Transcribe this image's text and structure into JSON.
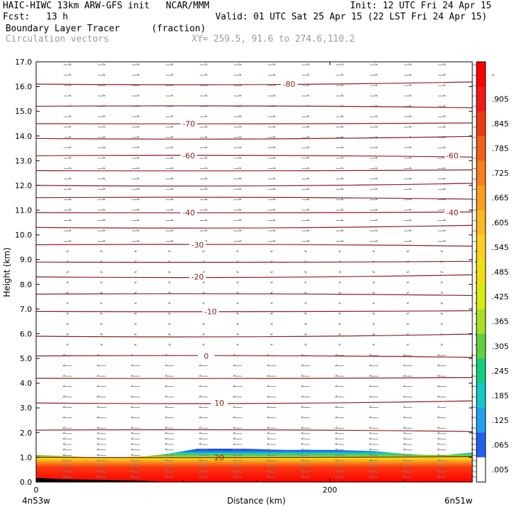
{
  "header": {
    "line1_left": "HAIC-HIWC 13km ARW-GFS init   NCAR/MMM",
    "line1_right": "Init: 12 UTC Fri 24 Apr 15",
    "line2_left": "Fcst:   13 h",
    "line2_right": "Valid: 01 UTC Sat 25 Apr 15 (22 LST Fri 24 Apr 15)",
    "field_name": "Boundary Layer Tracer",
    "field_units": "(fraction)",
    "overlay_name": "Circulation vectors",
    "xy_text": "XY= 259.5, 91.6 to 274.6,110.2"
  },
  "chart_data": {
    "type": "heatmap",
    "title": "Boundary Layer Tracer",
    "units": "(fraction)",
    "xlabel": "Distance (km)",
    "ylabel": "Height (km)",
    "xlim": [
      0,
      297
    ],
    "ylim": [
      0,
      17
    ],
    "x_ticks": [
      0,
      200
    ],
    "x_tick_labels": [
      "0",
      "200"
    ],
    "x_end_labels": {
      "left": "4n53w",
      "right": "6n51w"
    },
    "y_ticks": [
      0,
      1,
      2,
      3,
      4,
      5,
      6,
      7,
      8,
      9,
      10,
      11,
      12,
      13,
      14,
      15,
      16,
      17
    ],
    "y_tick_labels": [
      "0.0",
      "1.0",
      "2.0",
      "3.0",
      "4.0",
      "5.0",
      "6.0",
      "7.0",
      "8.0",
      "9.0",
      "10.0",
      "11.0",
      "12.0",
      "13.0",
      "14.0",
      "15.0",
      "16.0",
      "17.0"
    ],
    "colorbar": {
      "labels": [
        "-",
        ".905",
        ".845",
        ".785",
        ".725",
        ".665",
        ".605",
        ".545",
        ".485",
        ".425",
        ".365",
        ".305",
        ".245",
        ".185",
        ".125",
        ".065",
        ".005"
      ],
      "colors": [
        "#ff0000",
        "#f41818",
        "#ee3a10",
        "#f06018",
        "#f6801e",
        "#fb9e20",
        "#fdb820",
        "#fdd020",
        "#f0e010",
        "#d8ec10",
        "#a8e020",
        "#60d040",
        "#10d080",
        "#10c8c8",
        "#20a0f0",
        "#2060f0",
        "#ffffff"
      ]
    },
    "boundary_layer_top_km": [
      [
        0,
        1.1
      ],
      [
        20,
        1.05
      ],
      [
        40,
        1.0
      ],
      [
        55,
        1.0
      ],
      [
        75,
        1.05
      ],
      [
        90,
        1.15
      ],
      [
        110,
        1.35
      ],
      [
        140,
        1.35
      ],
      [
        170,
        1.3
      ],
      [
        200,
        1.3
      ],
      [
        230,
        1.25
      ],
      [
        250,
        1.15
      ],
      [
        265,
        1.1
      ],
      [
        280,
        1.1
      ],
      [
        297,
        1.2
      ]
    ],
    "contours": [
      {
        "label": "-80",
        "height_km": 16.1
      },
      {
        "label": "",
        "height_km": 15.2
      },
      {
        "label": "-70",
        "height_km": 14.5
      },
      {
        "label": "",
        "height_km": 13.9
      },
      {
        "label": "-60",
        "height_km": 13.2
      },
      {
        "label": "",
        "height_km": 12.6
      },
      {
        "label": "",
        "height_km": 12.0
      },
      {
        "label": "",
        "height_km": 11.5
      },
      {
        "label": "-40",
        "height_km": 10.9
      },
      {
        "label": "",
        "height_km": 10.3
      },
      {
        "label": "-30",
        "height_km": 9.6
      },
      {
        "label": "",
        "height_km": 8.9
      },
      {
        "label": "-20",
        "height_km": 8.3
      },
      {
        "label": "",
        "height_km": 7.6
      },
      {
        "label": "-10",
        "height_km": 6.9
      },
      {
        "label": "",
        "height_km": 5.9
      },
      {
        "label": "0",
        "height_km": 5.1
      },
      {
        "label": "",
        "height_km": 4.2
      },
      {
        "label": "10",
        "height_km": 3.2
      },
      {
        "label": "",
        "height_km": 2.1
      },
      {
        "label": "20",
        "height_km": 1.0
      }
    ],
    "colors": {
      "contour": "#8b1a1a",
      "vector": "#808080"
    }
  }
}
